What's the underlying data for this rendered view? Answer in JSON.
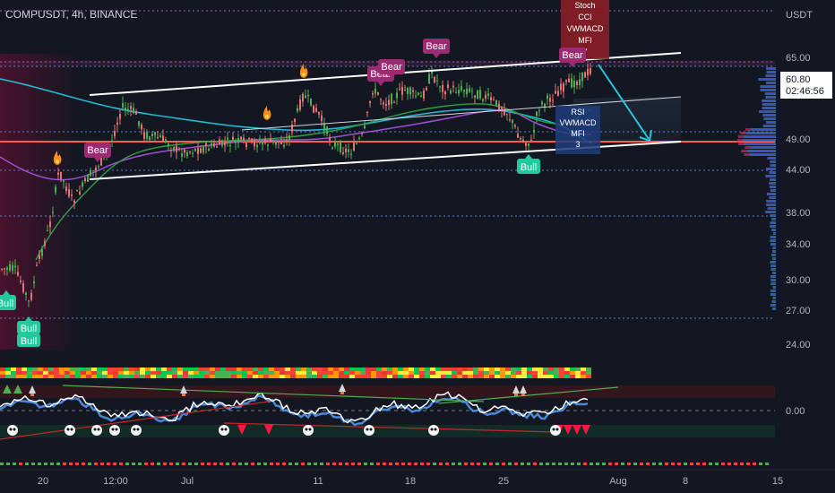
{
  "header": {
    "symbol_title": "COMPUSDT, 4h, BINANCE"
  },
  "price_axis": {
    "currency": "USDT",
    "ticks": [
      "65.00",
      "49.00",
      "44.00",
      "38.00",
      "34.00",
      "30.00",
      "27.00",
      "24.00",
      "0.00"
    ],
    "last_price": "60.80",
    "countdown": "02:46:56"
  },
  "time_axis": {
    "ticks": [
      "20",
      "12:00",
      "Jul",
      "11",
      "18",
      "25",
      "Aug",
      "8",
      "15"
    ]
  },
  "signals": {
    "bear_label": "Bear",
    "bull_label": "Bull",
    "stoch_box": [
      "Stoch",
      "CCI",
      "VWMACD",
      "MFI",
      "7"
    ],
    "rsi_box": [
      "RSI",
      "VWMACD",
      "MFI",
      "3"
    ]
  },
  "colors": {
    "background": "#131722",
    "bull": "#26a69a",
    "bear": "#ef5350",
    "bull_candle": "#4caf50",
    "bear_candle": "#e57373",
    "channel": "#ffffff",
    "target_arrow": "#26c6da",
    "bear_badge": "#9c2a71",
    "bull_badge": "#22c99a",
    "red_box": "#8b1e26",
    "blue_box": "#1d3d7a"
  }
}
